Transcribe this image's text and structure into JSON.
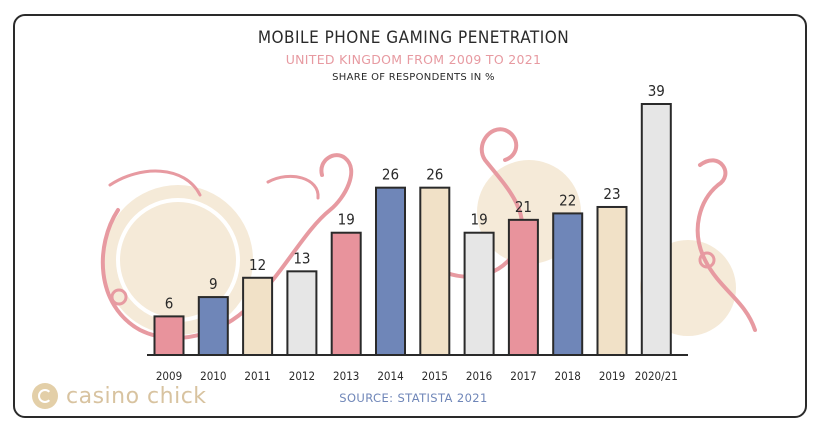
{
  "chart_data": {
    "type": "bar",
    "title": "MOBILE PHONE GAMING PENETRATION",
    "subtitle": "UNITED KINGDOM FROM 2009 TO 2021",
    "ylabel": "SHARE OF RESPONDENTS IN %",
    "xlabel": "",
    "categories": [
      "2009",
      "2010",
      "2011",
      "2012",
      "2013",
      "2014",
      "2015",
      "2016",
      "2017",
      "2018",
      "2019",
      "2020/21"
    ],
    "values": [
      6,
      9,
      12,
      13,
      19,
      26,
      26,
      19,
      21,
      22,
      23,
      39
    ],
    "bar_colors": [
      "#e8939c",
      "#6f86b8",
      "#f1e1c7",
      "#e6e6e6",
      "#e8939c",
      "#6f86b8",
      "#f1e1c7",
      "#e6e6e6",
      "#e8939c",
      "#6f86b8",
      "#f1e1c7",
      "#e6e6e6"
    ],
    "ylim": [
      0,
      39
    ],
    "grid": false,
    "legend": "none",
    "source": "SOURCE: STATISTA 2021"
  },
  "brand": {
    "name": "casino chick",
    "accent": "#d8c3a0"
  },
  "colors": {
    "pink": "#e8939c",
    "blue": "#6f86b8",
    "beige": "#f1e1c7",
    "grey": "#e6e6e6",
    "outline": "#2a2a2a",
    "decor_pink": "#e79aa1",
    "decor_beige": "#f2e4cc"
  }
}
